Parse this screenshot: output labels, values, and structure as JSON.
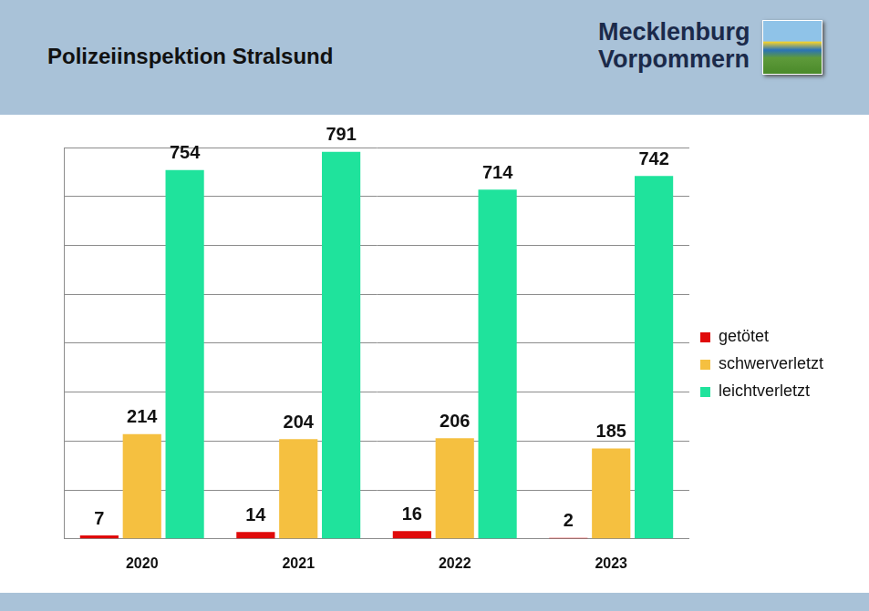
{
  "header": {
    "title": "Polizeiinspektion Stralsund",
    "logo": [
      "Mecklenburg",
      "Vorpommern"
    ]
  },
  "chart_data": {
    "type": "bar",
    "categories": [
      "2020",
      "2021",
      "2022",
      "2023"
    ],
    "series": [
      {
        "name": "getötet",
        "color": "#e00a0a",
        "values": [
          7,
          14,
          16,
          2
        ]
      },
      {
        "name": "schwerverletzt",
        "color": "#f5c040",
        "values": [
          214,
          204,
          206,
          185
        ]
      },
      {
        "name": "leichtverletzt",
        "color": "#1fe39c",
        "values": [
          754,
          791,
          714,
          742
        ]
      }
    ],
    "ylim": [
      0,
      800
    ],
    "yticks": [
      0,
      100,
      200,
      300,
      400,
      500,
      600,
      700,
      800
    ],
    "grid": true,
    "tick_labels": "x",
    "data_labels": true,
    "legend": "right"
  }
}
